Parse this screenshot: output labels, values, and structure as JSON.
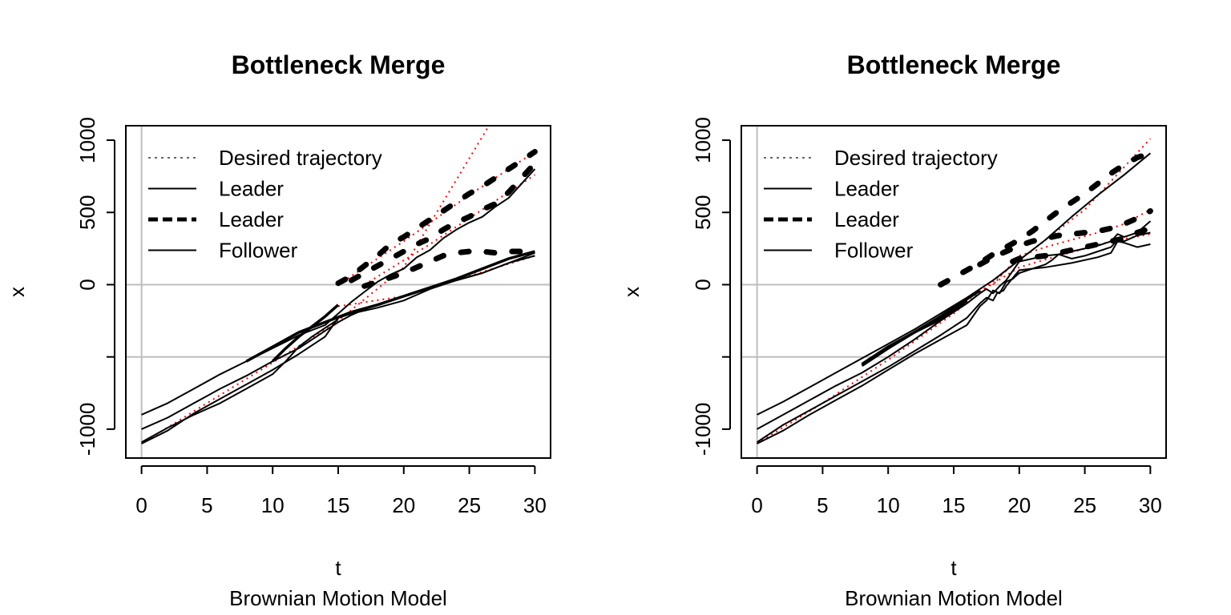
{
  "chart_data": [
    {
      "type": "line",
      "title": "Bottleneck Merge",
      "xlabel": "t",
      "subtitle": "Brownian Motion Model",
      "ylabel": "x",
      "xlim": [
        -1.2,
        31.2
      ],
      "ylim": [
        -1200,
        1100
      ],
      "x_ticks": [
        "0",
        "5",
        "10",
        "15",
        "20",
        "25",
        "30"
      ],
      "y_ticks": [
        "-1000",
        "",
        "0",
        "500",
        "1000"
      ],
      "reference_lines": {
        "vertical_x": [
          0
        ],
        "horizontal_y": [
          0,
          -500
        ],
        "color": "#bebebe"
      },
      "legend": {
        "position": "top-left",
        "entries": [
          {
            "label": "Desired trajectory",
            "style": "dotted-grey"
          },
          {
            "label": "Leader",
            "style": "solid-thin"
          },
          {
            "label": "Leader",
            "style": "dashed-thick"
          },
          {
            "label": "Follower",
            "style": "solid-thin"
          }
        ]
      },
      "series": [
        {
          "style": "red-dotted",
          "x": [
            0,
            5,
            10,
            15,
            20,
            26.5
          ],
          "y": [
            -1100,
            -820,
            -540,
            -250,
            120,
            1100
          ]
        },
        {
          "style": "red-dotted",
          "x": [
            15,
            20,
            25,
            30
          ],
          "y": [
            0,
            300,
            620,
            920
          ]
        },
        {
          "style": "red-dotted",
          "x": [
            17,
            22,
            26,
            30
          ],
          "y": [
            0,
            280,
            520,
            760
          ]
        },
        {
          "style": "red-dotted",
          "x": [
            15,
            20,
            25,
            30
          ],
          "y": [
            -150,
            -80,
            60,
            200
          ]
        },
        {
          "style": "solid-thin",
          "x": [
            0,
            2,
            4,
            6,
            8,
            10,
            12,
            14,
            15,
            16,
            17,
            18,
            19,
            20,
            21,
            22,
            23,
            24,
            25,
            26,
            27,
            28,
            29,
            30
          ],
          "y": [
            -900,
            -820,
            -720,
            -620,
            -530,
            -440,
            -350,
            -280,
            -200,
            -120,
            -50,
            20,
            70,
            110,
            190,
            240,
            320,
            380,
            430,
            470,
            540,
            600,
            700,
            800
          ]
        },
        {
          "style": "solid-thin",
          "x": [
            0,
            2,
            4,
            6,
            8,
            10,
            12,
            14,
            15,
            16,
            17,
            18,
            20,
            22,
            24,
            26,
            28,
            30
          ],
          "y": [
            -1000,
            -920,
            -820,
            -720,
            -630,
            -530,
            -440,
            -320,
            -260,
            -210,
            -170,
            -140,
            -80,
            -20,
            30,
            80,
            150,
            200
          ]
        },
        {
          "style": "solid-thin",
          "x": [
            0,
            2,
            4,
            6,
            8,
            10,
            12,
            14,
            15,
            16,
            18,
            20,
            22,
            24,
            26,
            28,
            30
          ],
          "y": [
            -1100,
            -1010,
            -890,
            -790,
            -690,
            -590,
            -480,
            -360,
            -230,
            -200,
            -160,
            -110,
            -30,
            30,
            80,
            150,
            220
          ]
        },
        {
          "style": "solid-thin",
          "x": [
            0,
            2,
            4,
            6,
            8,
            10,
            11,
            12,
            13,
            14,
            15
          ],
          "y": [
            -1090,
            -990,
            -900,
            -820,
            -720,
            -620,
            -530,
            -430,
            -360,
            -300,
            -240
          ]
        },
        {
          "style": "dashed-thick",
          "x": [
            15,
            16,
            17,
            18,
            19,
            20,
            21,
            22,
            23,
            24,
            25,
            26,
            27,
            28,
            29,
            30
          ],
          "y": [
            10,
            60,
            130,
            200,
            280,
            330,
            390,
            450,
            510,
            570,
            630,
            680,
            740,
            800,
            860,
            920
          ]
        },
        {
          "style": "dashed-thick",
          "x": [
            16,
            17,
            18,
            19,
            20,
            21,
            22,
            23,
            24,
            25,
            26,
            27,
            28,
            29,
            30
          ],
          "y": [
            30,
            80,
            130,
            180,
            230,
            280,
            320,
            380,
            430,
            470,
            520,
            560,
            640,
            740,
            840
          ]
        },
        {
          "style": "dashed-thick",
          "x": [
            17,
            18,
            19,
            20,
            21,
            22,
            23,
            24,
            25,
            26,
            27,
            28,
            29,
            30
          ],
          "y": [
            -10,
            20,
            50,
            80,
            120,
            160,
            200,
            220,
            230,
            230,
            220,
            230,
            230,
            240
          ]
        },
        {
          "style": "solid-thick",
          "x": [
            8,
            10,
            12,
            14,
            16,
            18,
            20,
            22,
            24,
            26,
            28,
            30
          ],
          "y": [
            -530,
            -430,
            -330,
            -260,
            -190,
            -140,
            -80,
            -20,
            40,
            110,
            180,
            230
          ]
        },
        {
          "style": "solid-thick",
          "x": [
            10,
            11,
            12,
            13,
            14,
            15
          ],
          "y": [
            -530,
            -440,
            -360,
            -290,
            -220,
            -140
          ]
        }
      ]
    },
    {
      "type": "line",
      "title": "Bottleneck Merge",
      "xlabel": "t",
      "subtitle": "Brownian Motion Model",
      "ylabel": "x",
      "xlim": [
        -1.2,
        31.2
      ],
      "ylim": [
        -1200,
        1100
      ],
      "x_ticks": [
        "0",
        "5",
        "10",
        "15",
        "20",
        "25",
        "30"
      ],
      "y_ticks": [
        "-1000",
        "",
        "0",
        "500",
        "1000"
      ],
      "reference_lines": {
        "vertical_x": [
          0
        ],
        "horizontal_y": [
          0,
          -500
        ],
        "color": "#bebebe"
      },
      "legend": {
        "position": "top-left",
        "entries": [
          {
            "label": "Desired trajectory",
            "style": "dotted-grey"
          },
          {
            "label": "Leader",
            "style": "solid-thin"
          },
          {
            "label": "Leader",
            "style": "dashed-thick"
          },
          {
            "label": "Follower",
            "style": "solid-thin"
          }
        ]
      },
      "series": [
        {
          "style": "red-dotted",
          "x": [
            0,
            5,
            10,
            15,
            20,
            25,
            30
          ],
          "y": [
            -1100,
            -820,
            -520,
            -200,
            170,
            520,
            1010
          ]
        },
        {
          "style": "red-dotted",
          "x": [
            18,
            20,
            22,
            24,
            26,
            28,
            30
          ],
          "y": [
            0,
            200,
            260,
            310,
            360,
            420,
            520
          ]
        },
        {
          "style": "red-dotted",
          "x": [
            17,
            20,
            23,
            25,
            27,
            30
          ],
          "y": [
            -50,
            120,
            200,
            250,
            300,
            350
          ]
        },
        {
          "style": "solid-thin",
          "x": [
            0,
            2,
            4,
            6,
            8,
            10,
            12,
            14,
            16,
            18,
            20,
            22,
            24,
            26,
            28,
            30
          ],
          "y": [
            -900,
            -810,
            -710,
            -610,
            -510,
            -410,
            -310,
            -200,
            -90,
            30,
            170,
            310,
            470,
            620,
            760,
            910
          ]
        },
        {
          "style": "solid-thin",
          "x": [
            0,
            2,
            4,
            6,
            8,
            10,
            12,
            14,
            16,
            17,
            17.5,
            18,
            18.5,
            19,
            20,
            21,
            22,
            23,
            24,
            25,
            26,
            27,
            27.5,
            28,
            29,
            30
          ],
          "y": [
            -1000,
            -900,
            -800,
            -700,
            -610,
            -500,
            -380,
            -250,
            -130,
            -60,
            -30,
            -60,
            -10,
            30,
            160,
            180,
            200,
            210,
            230,
            250,
            270,
            300,
            350,
            330,
            360,
            440
          ]
        },
        {
          "style": "solid-thin",
          "x": [
            0,
            2,
            4,
            6,
            8,
            10,
            12,
            14,
            16,
            17,
            17.5,
            18,
            18.5,
            19,
            19.5,
            20,
            21,
            22,
            22.5,
            23,
            24,
            25,
            26,
            27,
            27.5,
            28,
            29,
            30
          ],
          "y": [
            -1100,
            -1010,
            -900,
            -800,
            -700,
            -590,
            -480,
            -380,
            -280,
            -150,
            -110,
            -40,
            -60,
            20,
            40,
            80,
            110,
            140,
            170,
            210,
            180,
            200,
            230,
            260,
            310,
            300,
            340,
            360
          ]
        },
        {
          "style": "solid-thin",
          "x": [
            0,
            2,
            4,
            6,
            8,
            10,
            12,
            14,
            16,
            17,
            17.5,
            18,
            18.3,
            18.8,
            19,
            20,
            22,
            24,
            26,
            27,
            27.5,
            28,
            29,
            30
          ],
          "y": [
            -1090,
            -970,
            -870,
            -770,
            -670,
            -570,
            -460,
            -350,
            -230,
            -130,
            -90,
            -110,
            -60,
            -40,
            -10,
            100,
            120,
            150,
            190,
            220,
            300,
            290,
            260,
            280
          ]
        },
        {
          "style": "dashed-thick",
          "x": [
            14,
            15,
            16,
            17,
            18,
            19,
            20,
            21,
            22,
            23,
            24,
            25,
            26,
            27,
            28,
            29,
            30
          ],
          "y": [
            0,
            50,
            100,
            150,
            210,
            260,
            310,
            370,
            440,
            510,
            570,
            630,
            700,
            770,
            830,
            880,
            910
          ]
        },
        {
          "style": "dashed-thick",
          "x": [
            17,
            18,
            19,
            20,
            21,
            22,
            23,
            24,
            25,
            26,
            27,
            28,
            29,
            30
          ],
          "y": [
            140,
            190,
            230,
            270,
            300,
            320,
            340,
            350,
            360,
            370,
            390,
            420,
            460,
            510
          ]
        },
        {
          "style": "dashed-thick",
          "x": [
            19.5,
            20,
            21,
            22,
            23,
            24,
            25,
            26,
            27,
            28,
            29,
            30
          ],
          "y": [
            160,
            180,
            190,
            200,
            220,
            240,
            260,
            280,
            300,
            320,
            360,
            390
          ]
        },
        {
          "style": "solid-thick",
          "x": [
            8,
            10,
            12,
            14,
            15,
            16
          ],
          "y": [
            -550,
            -430,
            -330,
            -240,
            -180,
            -110
          ]
        },
        {
          "style": "solid-thick",
          "x": [
            8,
            10,
            12,
            14,
            16,
            17
          ],
          "y": [
            -560,
            -440,
            -330,
            -220,
            -100,
            -40
          ]
        }
      ]
    }
  ]
}
